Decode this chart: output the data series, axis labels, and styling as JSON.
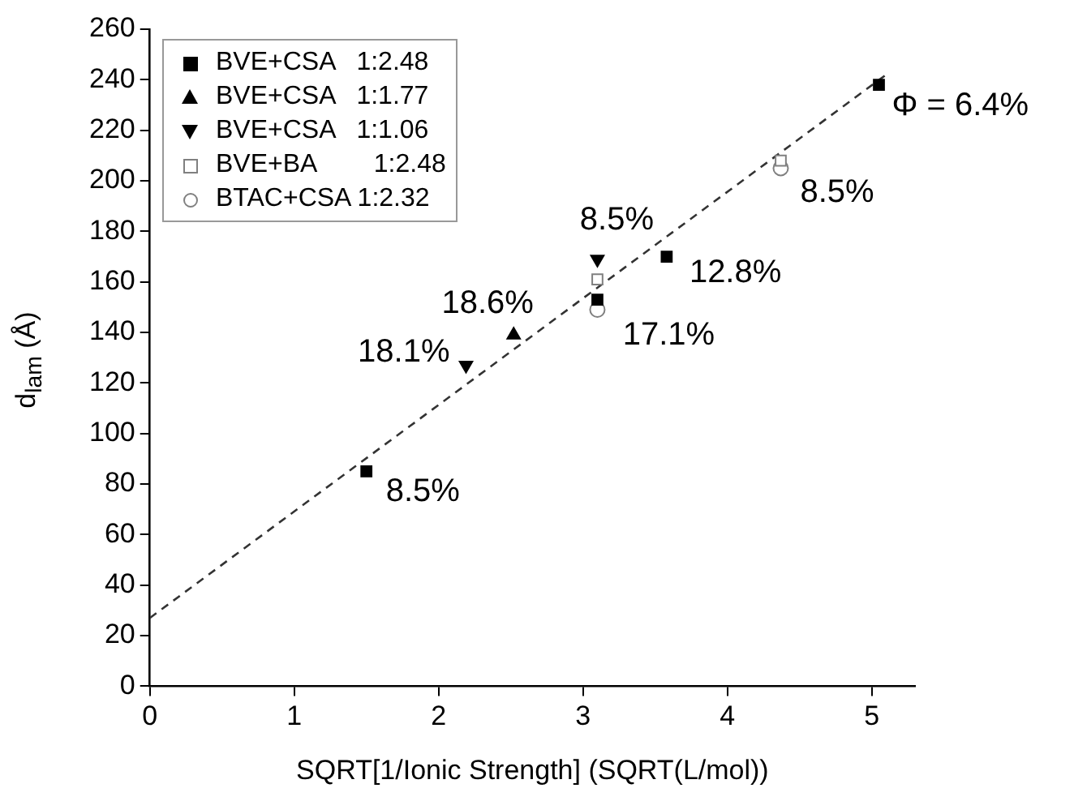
{
  "chart_data": {
    "type": "scatter",
    "xlabel": "SQRT[1/Ionic Strength] (SQRT(L/mol))",
    "ylabel": "d$_{lam}$ (Å)",
    "xlim": [
      0,
      5.3
    ],
    "xticks": [
      0,
      1,
      2,
      3,
      4,
      5
    ],
    "ylim": [
      0,
      260
    ],
    "yticks": [
      0,
      20,
      40,
      60,
      80,
      100,
      120,
      140,
      160,
      180,
      200,
      220,
      240,
      260
    ],
    "grid": false,
    "legend": "top left",
    "series": [
      {
        "name": "BVE+CSA   1:2.48",
        "color": "#000000",
        "marker": "square",
        "x": [
          1.5,
          3.1,
          3.58,
          5.05
        ],
        "values": [
          85,
          153,
          170,
          238
        ]
      },
      {
        "name": "BVE+CSA   1:1.77",
        "color": "#000000",
        "marker": "triangle",
        "x": [
          2.52
        ],
        "values": [
          139
        ]
      },
      {
        "name": "BVE+CSA   1:1.06",
        "color": "#000000",
        "marker": "triangle-down",
        "x": [
          2.19,
          3.1
        ],
        "values": [
          127,
          169
        ]
      },
      {
        "name": "BVE+BA        1:2.48",
        "color": "#808080",
        "marker": "square-open",
        "x": [
          3.1,
          4.37
        ],
        "values": [
          161,
          208
        ]
      },
      {
        "name": "BTAC+CSA 1:2.32",
        "color": "#808080",
        "marker": "circle-open",
        "x": [
          3.1,
          4.37
        ],
        "values": [
          149,
          205
        ]
      },
      {
        "type": "line",
        "color": "#333333",
        "marker": "none",
        "line_style": "dashed",
        "x": [
          0,
          5.1
        ],
        "values": [
          27,
          242
        ]
      }
    ],
    "annotations": [
      {
        "text": "Φ = 6.4%",
        "x": 5.05,
        "y": 238
      },
      {
        "text": "8.5%",
        "x": 1.5,
        "y": 85
      },
      {
        "text": "18.1%",
        "x": 2.19,
        "y": 127
      },
      {
        "text": "18.6%",
        "x": 2.52,
        "y": 139
      },
      {
        "text": "8.5%",
        "x": 3.1,
        "y": 169
      },
      {
        "text": "12.8%",
        "x": 3.58,
        "y": 170
      },
      {
        "text": "17.1%",
        "x": 3.1,
        "y": 153
      },
      {
        "text": "8.5%",
        "x": 4.37,
        "y": 208
      }
    ]
  }
}
